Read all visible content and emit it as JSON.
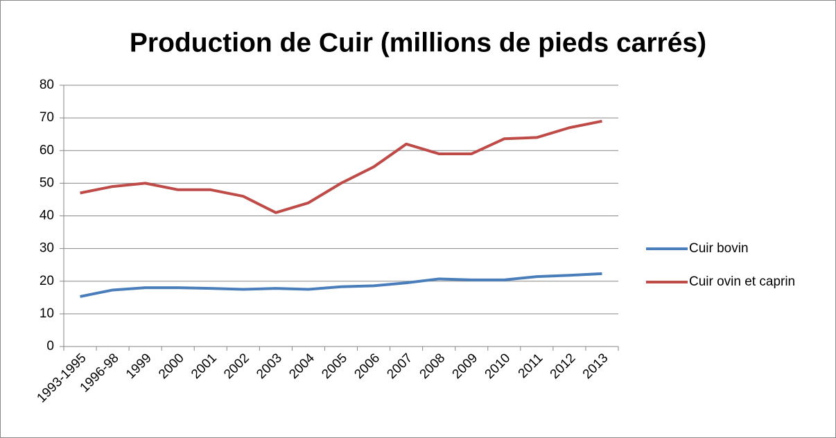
{
  "chart_data": {
    "type": "line",
    "title": "Production de Cuir (millions de pieds carrés)",
    "categories": [
      "1993-1995",
      "1996-98",
      "1999",
      "2000",
      "2001",
      "2002",
      "2003",
      "2004",
      "2005",
      "2006",
      "2007",
      "2008",
      "2009",
      "2010",
      "2011",
      "2012",
      "2013"
    ],
    "series": [
      {
        "name": "Cuir bovin",
        "color": "#4a7ebb",
        "values": [
          15.3,
          17.3,
          18,
          18,
          17.8,
          17.5,
          17.8,
          17.5,
          18.3,
          18.6,
          19.5,
          20.7,
          20.4,
          20.4,
          21.4,
          21.8,
          22.3
        ]
      },
      {
        "name": "Cuir ovin et caprin",
        "color": "#be4b48",
        "values": [
          47,
          49,
          50,
          48,
          48,
          46,
          41,
          44,
          50,
          55,
          62,
          59,
          59,
          63.6,
          64,
          67,
          69
        ]
      }
    ],
    "ylim": [
      0,
      80
    ],
    "yticks": [
      0,
      10,
      20,
      30,
      40,
      50,
      60,
      70,
      80
    ],
    "grid": true,
    "legend": "right"
  }
}
